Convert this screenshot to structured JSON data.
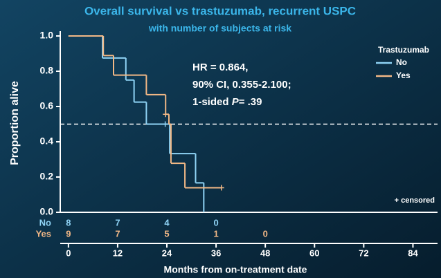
{
  "chart_data": {
    "type": "km",
    "title": "Overall survival vs trastuzumab, recurrent USPC",
    "subtitle": "with number of subjects at risk",
    "xlabel": "Months from on-treatment date",
    "ylabel": "Proportion alive",
    "xlim": [
      -2,
      90
    ],
    "ylim": [
      0,
      1
    ],
    "xticks": [
      0,
      12,
      24,
      36,
      48,
      60,
      72,
      84
    ],
    "yticks": [
      {
        "value": 0,
        "label": "0.0"
      },
      0.2,
      0.4,
      0.6,
      0.8,
      {
        "value": 1,
        "label": "1.0"
      }
    ],
    "hline": 0.5,
    "legend_title": "Trastuzumab",
    "legend": "upper right",
    "censor_note": "+ censored",
    "annotation": [
      "HR = 0.864,",
      "90% CI, 0.355-2.100;"
    ],
    "annotation_last": [
      "1-sided ",
      "P",
      "= .39"
    ],
    "series": [
      {
        "name": "No",
        "color": "#8fd3f5",
        "x": [
          0,
          8.3,
          14,
          16,
          19,
          24.7,
          31,
          33
        ],
        "y": [
          1,
          0.875,
          0.75,
          0.625,
          0.5,
          0.333,
          0.167,
          0
        ],
        "censor_x": [
          23.6
        ],
        "censor_y": [
          0.5
        ]
      },
      {
        "name": "Yes",
        "color": "#f2b886",
        "x": [
          0,
          8.5,
          11,
          19,
          23.7,
          24.5,
          25,
          28.4
        ],
        "y": [
          1,
          0.889,
          0.778,
          0.667,
          0.556,
          0.5,
          0.278,
          0.139
        ],
        "censor_x": [
          23.7,
          37.3
        ],
        "censor_y": [
          0.556,
          0.139
        ]
      }
    ],
    "risk_times": [
      0,
      12,
      24,
      36,
      48
    ],
    "risk_counts": [
      [
        8,
        7,
        4,
        0,
        null
      ],
      [
        9,
        7,
        5,
        1,
        0
      ]
    ]
  }
}
